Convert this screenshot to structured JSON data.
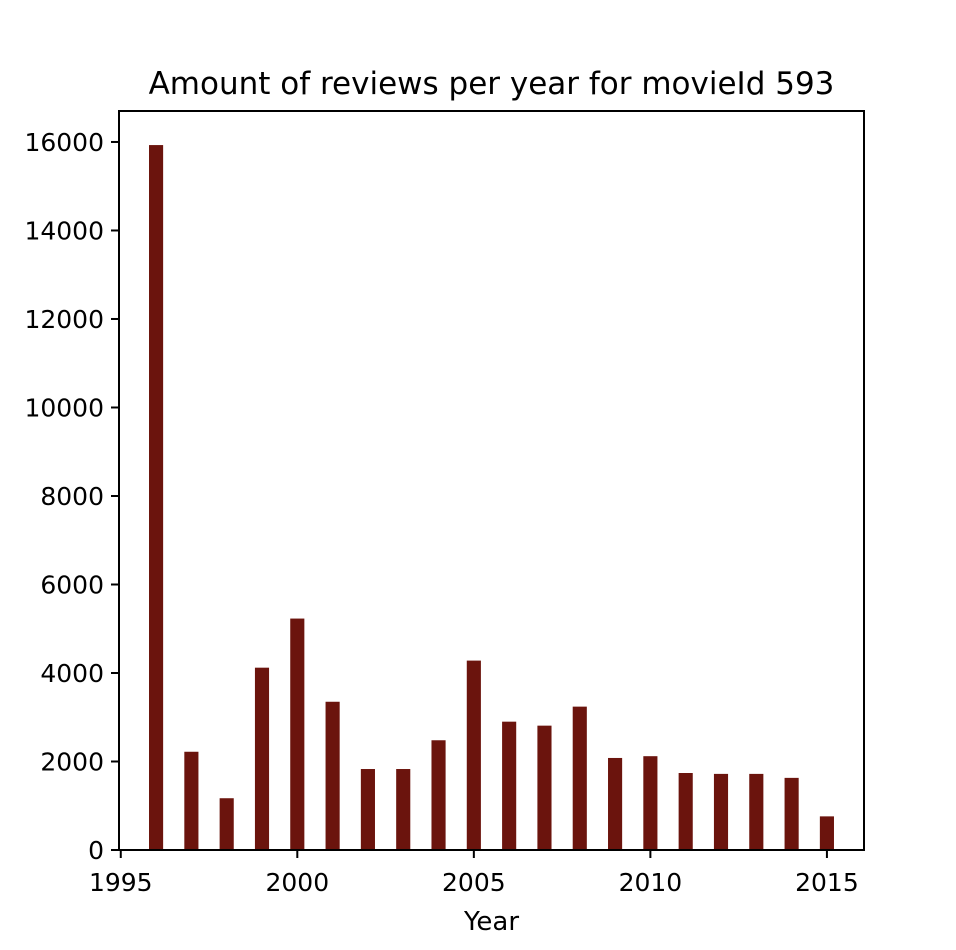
{
  "colors": {
    "bar": "#6b140d",
    "axis": "#000000",
    "background": "#ffffff"
  },
  "chart_data": {
    "type": "bar",
    "title": "Amount of reviews per year for movieId 593",
    "xlabel": "Year",
    "ylabel": "",
    "xlim": [
      1994.95,
      2016.05
    ],
    "ylim": [
      0,
      16700
    ],
    "bar_width_years": 0.4,
    "xticks": [
      1995,
      2000,
      2005,
      2010,
      2015
    ],
    "yticks": [
      0,
      2000,
      4000,
      6000,
      8000,
      10000,
      12000,
      14000,
      16000
    ],
    "grid": false,
    "legend": "none",
    "x": [
      1996,
      1997,
      1998,
      1999,
      2000,
      2001,
      2002,
      2003,
      2004,
      2005,
      2006,
      2007,
      2008,
      2009,
      2010,
      2011,
      2012,
      2013,
      2014,
      2015
    ],
    "values": [
      15930,
      2220,
      1170,
      4120,
      5230,
      3350,
      1830,
      1830,
      2480,
      4280,
      2900,
      2810,
      3240,
      2080,
      2120,
      1740,
      1720,
      1720,
      1630,
      760
    ]
  }
}
